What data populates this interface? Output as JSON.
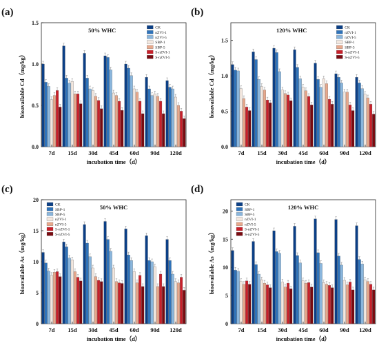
{
  "chart_data": [
    {
      "type": "bar",
      "panel_label": "(a)",
      "annotation": "50% WHC",
      "xlabel": "incubation time（d）",
      "ylabel": "bioavailable Cd（mg/kg）",
      "categories": [
        "7d",
        "15d",
        "30d",
        "45d",
        "60d",
        "90d",
        "120d"
      ],
      "ylim": [
        0,
        1.5
      ],
      "yticks": [
        "0.0",
        "0.5",
        "1.0",
        "1.5"
      ],
      "legend_position": "top-right",
      "series": [
        {
          "name": "CK",
          "color": "#0b3f86",
          "values": [
            1.0,
            1.22,
            1.13,
            1.1,
            1.0,
            0.84,
            0.8
          ]
        },
        {
          "name": "nZVI-1",
          "color": "#2f73ba",
          "values": [
            0.78,
            0.83,
            0.83,
            1.08,
            0.95,
            0.7,
            0.72
          ]
        },
        {
          "name": "nZVI-5",
          "color": "#8ab6dd",
          "values": [
            0.73,
            0.77,
            0.7,
            0.93,
            0.86,
            0.62,
            0.7
          ]
        },
        {
          "name": "SBP-1",
          "color": "#f3e7df",
          "values": [
            0.57,
            0.79,
            0.68,
            0.65,
            0.7,
            0.64,
            0.6
          ]
        },
        {
          "name": "SBP-5",
          "color": "#e8a88c",
          "values": [
            0.62,
            0.64,
            0.61,
            0.62,
            0.66,
            0.61,
            0.5
          ]
        },
        {
          "name": "S-nZVI-1",
          "color": "#c8202a",
          "values": [
            0.68,
            0.64,
            0.56,
            0.55,
            0.55,
            0.55,
            0.43
          ]
        },
        {
          "name": "S-nZVI-5",
          "color": "#7a0a10",
          "values": [
            0.48,
            0.52,
            0.46,
            0.44,
            0.4,
            0.4,
            0.34
          ]
        }
      ]
    },
    {
      "type": "bar",
      "panel_label": "(b)",
      "annotation": "120% WHC",
      "xlabel": "incubation time（d）",
      "ylabel": "bioavailable Cd（mg/kg）",
      "categories": [
        "7d",
        "15d",
        "30d",
        "45d",
        "60d",
        "90d",
        "120d"
      ],
      "ylim": [
        0,
        1.75
      ],
      "yticks": [
        "0.0",
        "0.5",
        "1.0",
        "1.5"
      ],
      "legend_position": "top-right",
      "series": [
        {
          "name": "CK",
          "color": "#0b3f86",
          "values": [
            1.16,
            1.34,
            1.39,
            1.37,
            1.18,
            1.03,
            0.98
          ]
        },
        {
          "name": "nZVI-1",
          "color": "#2f73ba",
          "values": [
            1.08,
            1.23,
            1.33,
            1.12,
            0.95,
            0.98,
            0.9
          ]
        },
        {
          "name": "nZVI-5",
          "color": "#8ab6dd",
          "values": [
            1.07,
            0.95,
            1.06,
            0.96,
            0.84,
            0.9,
            0.82
          ]
        },
        {
          "name": "SBP-1",
          "color": "#f3e7df",
          "values": [
            0.82,
            0.85,
            0.8,
            0.84,
            0.96,
            0.77,
            0.74
          ]
        },
        {
          "name": "SBP-5",
          "color": "#e8a88c",
          "values": [
            0.68,
            0.8,
            0.75,
            0.79,
            0.89,
            0.77,
            0.69
          ]
        },
        {
          "name": "S-nZVI-1",
          "color": "#c8202a",
          "values": [
            0.56,
            0.66,
            0.73,
            0.71,
            0.67,
            0.59,
            0.6
          ]
        },
        {
          "name": "S-nZVI-5",
          "color": "#7a0a10",
          "values": [
            0.51,
            0.62,
            0.65,
            0.59,
            0.6,
            0.51,
            0.46
          ]
        }
      ]
    },
    {
      "type": "bar",
      "panel_label": "(c)",
      "annotation": "50% WHC",
      "xlabel": "incubation time（d）",
      "ylabel": "bioavailable As（mg/kg）",
      "categories": [
        "7d",
        "15d",
        "30d",
        "45d",
        "60d",
        "90d",
        "120d"
      ],
      "ylim": [
        0,
        20
      ],
      "yticks": [
        "0",
        "5",
        "10",
        "15",
        "20"
      ],
      "legend_position": "top-left",
      "series": [
        {
          "name": "CK",
          "color": "#0b3f86",
          "values": [
            11.5,
            13.2,
            16.0,
            16.5,
            15.3,
            14.2,
            13.6
          ]
        },
        {
          "name": "SBP-1",
          "color": "#2f73ba",
          "values": [
            9.8,
            12.4,
            13.0,
            13.6,
            11.1,
            10.2,
            10.2
          ]
        },
        {
          "name": "SBP-5",
          "color": "#8ab6dd",
          "values": [
            8.5,
            10.6,
            10.8,
            11.7,
            10.2,
            10.0,
            8.0
          ]
        },
        {
          "name": "nZVI-1",
          "color": "#f3e7df",
          "values": [
            7.8,
            10.3,
            9.0,
            9.0,
            8.4,
            9.2,
            6.8
          ]
        },
        {
          "name": "nZVI-5",
          "color": "#e8a88c",
          "values": [
            8.3,
            8.4,
            7.6,
            6.8,
            6.6,
            6.0,
            6.6
          ]
        },
        {
          "name": "S-nZVI-1",
          "color": "#c8202a",
          "values": [
            8.4,
            7.5,
            7.0,
            6.6,
            7.8,
            8.0,
            7.5
          ]
        },
        {
          "name": "S-nZVI-5",
          "color": "#7a0a10",
          "values": [
            7.6,
            6.9,
            6.8,
            6.5,
            6.0,
            6.0,
            5.4
          ]
        }
      ]
    },
    {
      "type": "bar",
      "panel_label": "(d)",
      "annotation": "120% WHC",
      "xlabel": "incubation time（d）",
      "ylabel": "bioavailable As（mg/kg）",
      "categories": [
        "7d",
        "15d",
        "30d",
        "45d",
        "60d",
        "90d",
        "120d"
      ],
      "ylim": [
        0,
        22
      ],
      "yticks": [
        "0",
        "5",
        "10",
        "15",
        "20"
      ],
      "legend_position": "top-left",
      "series": [
        {
          "name": "CK",
          "color": "#0b3f86",
          "values": [
            13.0,
            14.6,
            16.5,
            17.3,
            18.6,
            18.5,
            17.4
          ]
        },
        {
          "name": "SBP-1",
          "color": "#2f73ba",
          "values": [
            9.5,
            10.5,
            12.8,
            12.1,
            12.6,
            12.0,
            11.4
          ]
        },
        {
          "name": "SBP-5",
          "color": "#8ab6dd",
          "values": [
            9.3,
            8.8,
            12.5,
            10.8,
            10.7,
            10.4,
            10.6
          ]
        },
        {
          "name": "nZVI-1",
          "color": "#f3e7df",
          "values": [
            7.5,
            7.8,
            7.4,
            7.6,
            7.3,
            7.7,
            7.8
          ]
        },
        {
          "name": "nZVI-5",
          "color": "#e8a88c",
          "values": [
            7.0,
            7.2,
            6.5,
            7.2,
            7.0,
            6.9,
            7.5
          ]
        },
        {
          "name": "S-nZVI-1",
          "color": "#c8202a",
          "values": [
            7.6,
            6.9,
            7.2,
            7.3,
            6.8,
            7.4,
            7.0
          ]
        },
        {
          "name": "S-nZVI-5",
          "color": "#7a0a10",
          "values": [
            7.0,
            6.4,
            6.2,
            6.5,
            6.4,
            6.0,
            6.0
          ]
        }
      ]
    }
  ]
}
